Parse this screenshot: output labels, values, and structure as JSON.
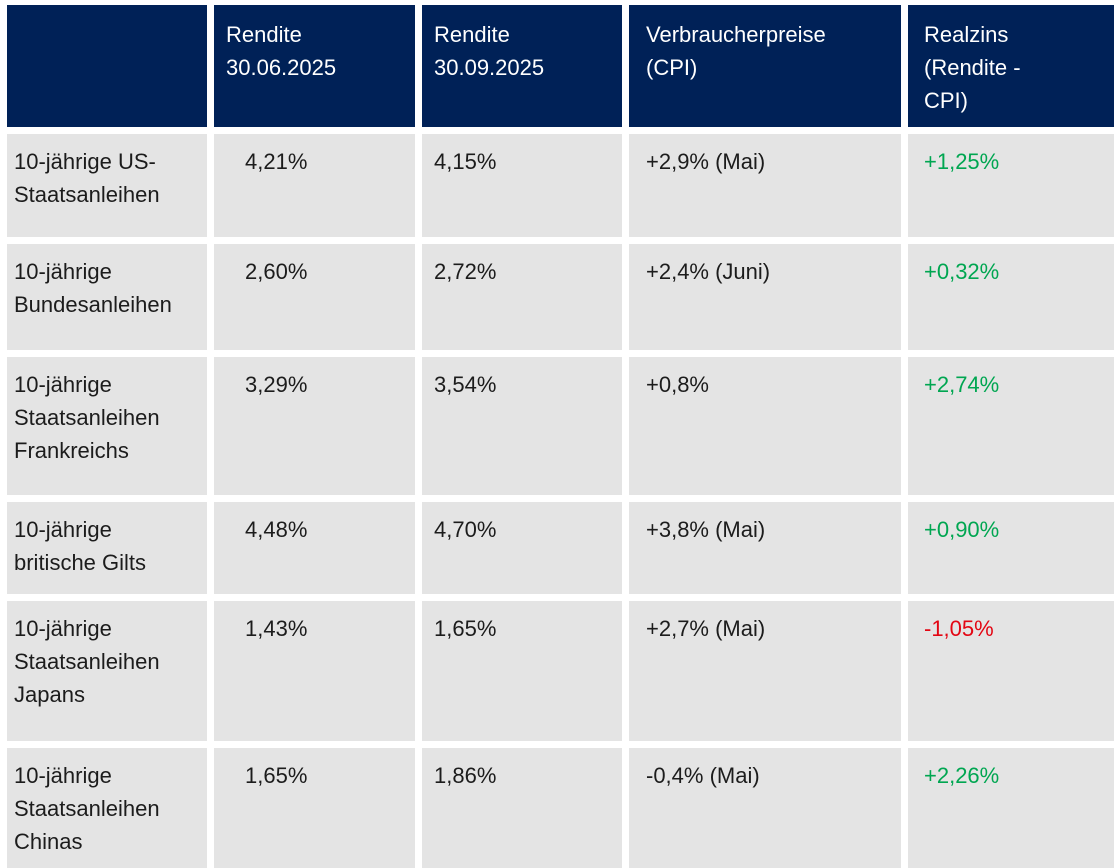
{
  "colors": {
    "header_background": "#002157",
    "header_text": "#ffffff",
    "row_background": "#e4e4e4",
    "body_text": "#1c1c1c",
    "positive_realzins": "#00a651",
    "negative_realzins": "#e30613"
  },
  "header_lines": [
    [],
    [
      "Rendite",
      "30.06.2025"
    ],
    [
      "Rendite",
      "30.09.2025"
    ],
    [
      "Verbraucherpreise",
      "(CPI)"
    ],
    [
      "Realzins",
      "(Rendite -",
      "CPI)"
    ]
  ],
  "chart_data": {
    "type": "table",
    "columns": [
      "",
      "Rendite 30.06.2025",
      "Rendite 30.09.2025",
      "Verbraucherpreise (CPI)",
      "Realzins (Rendite - CPI)"
    ],
    "rows": [
      [
        "10-jährige US-Staatsanleihen",
        "4,21%",
        "4,15%",
        "+2,9% (Mai)",
        "+1,25%"
      ],
      [
        "10-jährige Bundesanleihen",
        "2,60%",
        "2,72%",
        "+2,4% (Juni)",
        "+0,32%"
      ],
      [
        "10-jährige Staatsanleihen Frankreichs",
        "3,29%",
        "3,54%",
        "+0,8%",
        "+2,74%"
      ],
      [
        "10-jährige britische Gilts",
        "4,48%",
        "4,70%",
        "+3,8% (Mai)",
        "+0,90%"
      ],
      [
        "10-jährige Staatsanleihen Japans",
        "1,43%",
        "1,65%",
        "+2,7% (Mai)",
        "-1,05%"
      ],
      [
        "10-jährige Staatsanleihen Chinas",
        "1,65%",
        "1,86%",
        "-0,4% (Mai)",
        "+2,26%"
      ]
    ]
  }
}
